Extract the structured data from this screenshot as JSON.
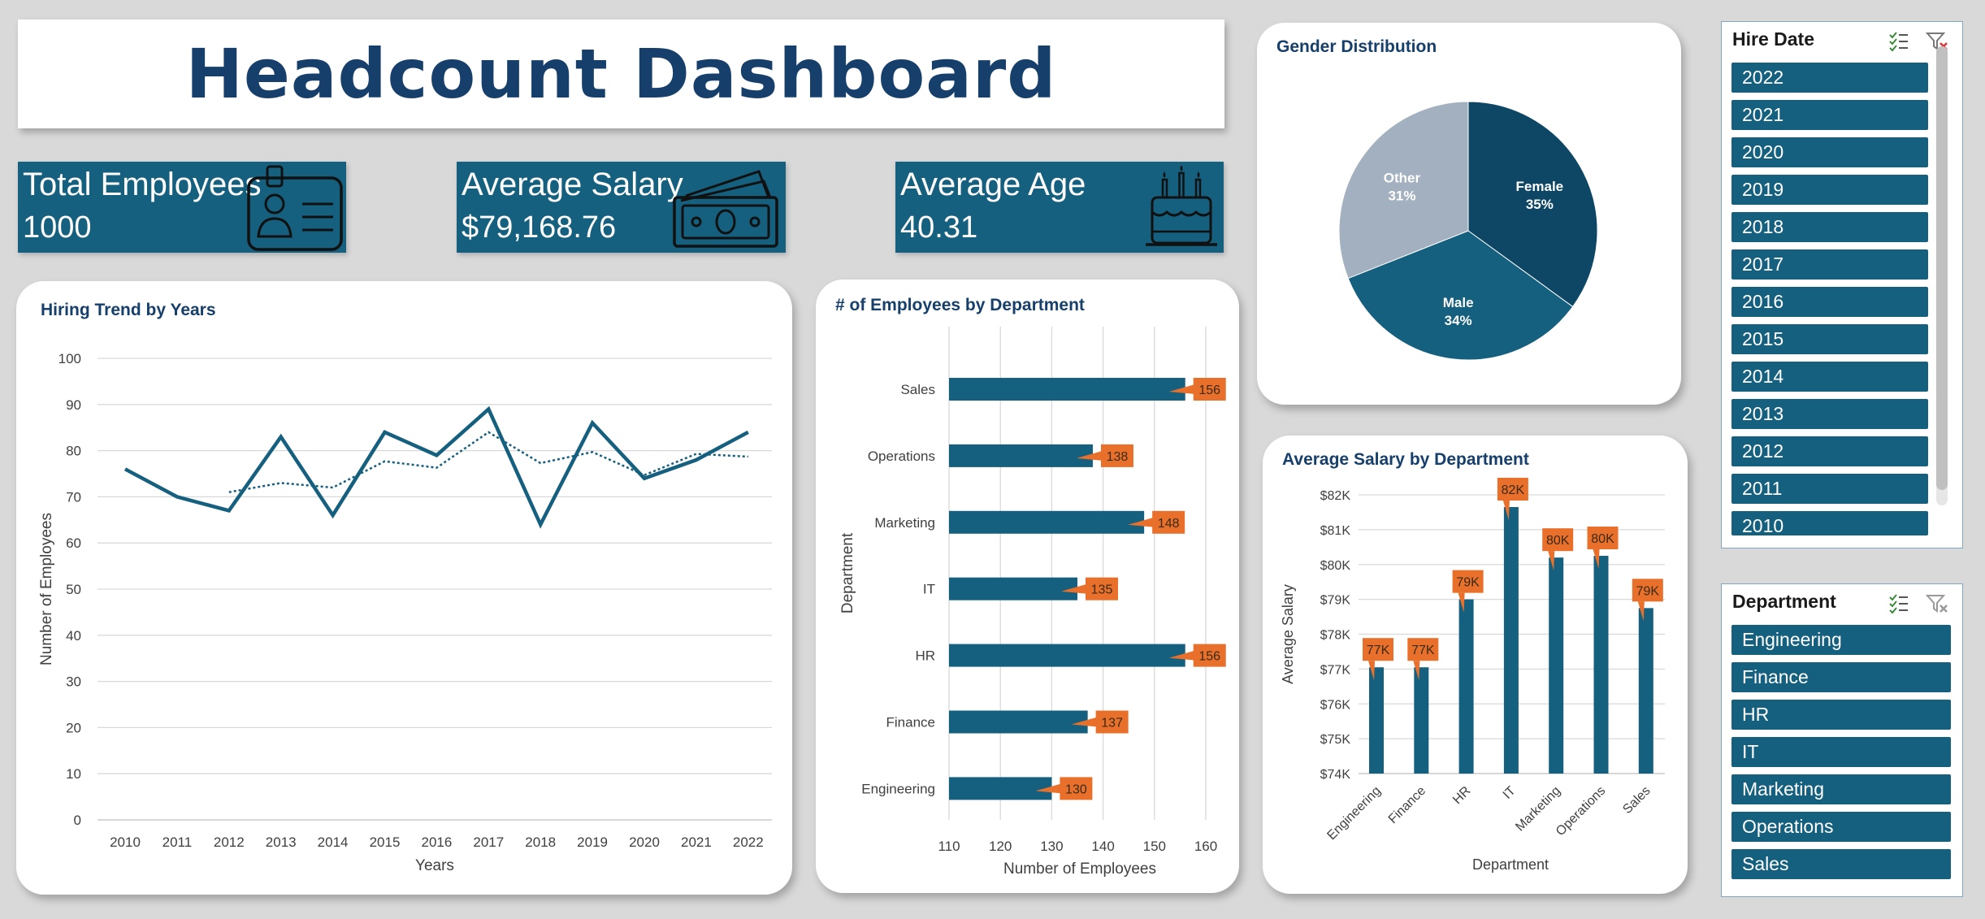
{
  "dashboard": {
    "title": "Headcount Dashboard"
  },
  "kpis": {
    "total_employees": {
      "label": "Total Employees",
      "value": "1000",
      "icon": "id-badge-icon"
    },
    "average_salary": {
      "label": "Average Salary",
      "value": "$79,168.76",
      "icon": "money-icon"
    },
    "average_age": {
      "label": "Average Age",
      "value": "40.31",
      "icon": "birthday-cake-icon"
    }
  },
  "colors": {
    "primary": "#16607f",
    "dark": "#0e4766",
    "grey": "#a3b0bf",
    "label": "#e8702a",
    "title": "#163f6b"
  },
  "charts": {
    "hiring_trend": {
      "title": "Hiring Trend by Years",
      "chart_data": {
        "type": "line",
        "x": [
          "2010",
          "2011",
          "2012",
          "2013",
          "2014",
          "2015",
          "2016",
          "2017",
          "2018",
          "2019",
          "2020",
          "2021",
          "2022"
        ],
        "series": [
          {
            "values": [
              76,
              70,
              67,
              83,
              66,
              84,
              79,
              89,
              64,
              86,
              74,
              78,
              84
            ]
          },
          {
            "values": [
              null,
              null,
              71,
              73,
              72,
              77.7,
              76.3,
              84,
              77.3,
              79.7,
              74.7,
              79.3,
              78.7
            ]
          }
        ],
        "xlabel": "Years",
        "ylabel": "Number of Employees",
        "ylim": [
          0,
          100
        ],
        "yticks": [
          "0",
          "10",
          "20",
          "30",
          "40",
          "50",
          "60",
          "70",
          "80",
          "90",
          "100"
        ],
        "grid": true
      }
    },
    "employees_by_department": {
      "title": "# of Employees by Department",
      "chart_data": {
        "type": "bar",
        "categories": [
          "Sales",
          "Operations",
          "Marketing",
          "IT",
          "HR",
          "Finance",
          "Engineering"
        ],
        "values": [
          156,
          138,
          148,
          135,
          156,
          137,
          130
        ],
        "data_labels": [
          "156",
          "138",
          "148",
          "135",
          "156",
          "137",
          "130"
        ],
        "xlabel": "Number of Employees",
        "ylabel": "Department",
        "xlim": [
          110,
          160
        ],
        "xticks": [
          "110",
          "120",
          "130",
          "140",
          "150",
          "160"
        ],
        "grid": true
      }
    },
    "gender_distribution": {
      "title": "Gender Distribution",
      "chart_data": {
        "type": "pie",
        "categories": [
          "Female",
          "Male",
          "Other"
        ],
        "values": [
          35,
          34,
          31
        ],
        "labels": [
          {
            "name": "Female",
            "pct": "35%"
          },
          {
            "name": "Male",
            "pct": "34%"
          },
          {
            "name": "Other",
            "pct": "31%"
          }
        ]
      }
    },
    "salary_by_department": {
      "title": "Average Salary by Department",
      "chart_data": {
        "type": "bar",
        "categories": [
          "Engineering",
          "Finance",
          "HR",
          "IT",
          "Marketing",
          "Operations",
          "Sales"
        ],
        "values": [
          77050,
          77050,
          79000,
          81650,
          80200,
          80250,
          78750
        ],
        "data_labels": [
          "77K",
          "77K",
          "79K",
          "82K",
          "80K",
          "80K",
          "79K"
        ],
        "xlabel": "Department",
        "ylabel": "Average Salary",
        "ylim": [
          74000,
          82000
        ],
        "yticks": [
          "$74K",
          "$75K",
          "$76K",
          "$77K",
          "$78K",
          "$79K",
          "$80K",
          "$81K",
          "$82K"
        ],
        "grid": true
      }
    }
  },
  "slicers": {
    "hire_date": {
      "header": "Hire Date",
      "items": [
        "2022",
        "2021",
        "2020",
        "2019",
        "2018",
        "2017",
        "2016",
        "2015",
        "2014",
        "2013",
        "2012",
        "2011",
        "2010"
      ]
    },
    "department": {
      "header": "Department",
      "items": [
        "Engineering",
        "Finance",
        "HR",
        "IT",
        "Marketing",
        "Operations",
        "Sales"
      ]
    }
  }
}
